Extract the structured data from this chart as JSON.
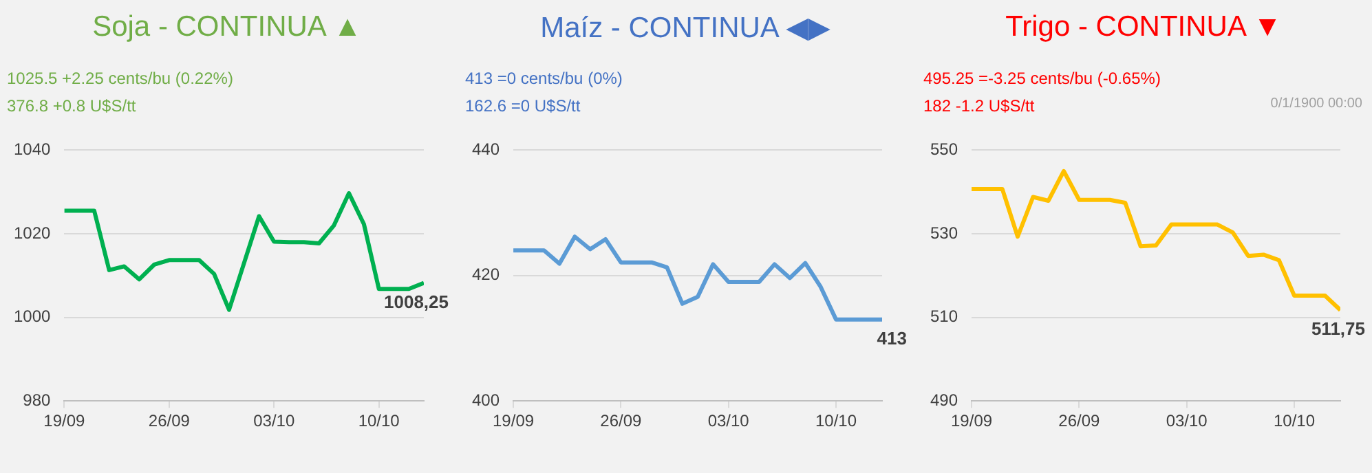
{
  "chart_data": [
    {
      "type": "line",
      "title": "Soja - CONTINUA ▲",
      "subtitle": "1025.5 +2.25 cents/bu (0.22%)",
      "annotations": [
        "376.8 +0.8 U$S/tt"
      ],
      "x": [
        "--09-19",
        "--09-20",
        "--09-21",
        "--09-22",
        "--09-23",
        "--09-24",
        "--09-25",
        "--09-26",
        "--09-27",
        "--09-28",
        "--09-29",
        "--09-30",
        "--10-01",
        "--10-02",
        "--10-03",
        "--10-04",
        "--10-05",
        "--10-06",
        "--10-07",
        "--10-08",
        "--10-09",
        "--10-10",
        "--10-11",
        "--10-12",
        "--10-13"
      ],
      "series": [
        {
          "color": "#00b050",
          "values": [
            1025.5,
            1025.5,
            1025.5,
            1011.3,
            1012.2,
            1009.1,
            1012.6,
            1013.7,
            1013.7,
            1013.7,
            1010.4,
            1001.8,
            1013,
            1024.2,
            1018.1,
            1018,
            1018,
            1017.7,
            1022,
            1029.7,
            1022.3,
            1006.8,
            1006.8,
            1006.8,
            1008.25
          ],
          "value_labels": [
            null,
            null,
            null,
            null,
            null,
            null,
            null,
            null,
            null,
            null,
            null,
            null,
            null,
            null,
            null,
            null,
            null,
            null,
            null,
            null,
            null,
            null,
            null,
            null,
            "1008,25"
          ]
        }
      ],
      "xlim": [
        "--09-19",
        "--10-13"
      ],
      "xticks": [
        {
          "value": "--09-19",
          "label": "19/09"
        },
        {
          "value": "--09-26",
          "label": "26/09"
        },
        {
          "value": "--10-03",
          "label": "03/10"
        },
        {
          "value": "--10-10",
          "label": "10/10"
        }
      ],
      "ylim": [
        980,
        1040
      ],
      "yticks": [
        980,
        1000,
        1020,
        1040
      ],
      "grid": "y",
      "marker": "none"
    },
    {
      "type": "line",
      "title": "Maíz - CONTINUA ◀▶",
      "subtitle": "413 =0 cents/bu (0%)",
      "annotations": [
        "162.6 =0 U$S/tt"
      ],
      "x": [
        "--09-19",
        "--09-20",
        "--09-21",
        "--09-22",
        "--09-23",
        "--09-24",
        "--09-25",
        "--09-26",
        "--09-27",
        "--09-28",
        "--09-29",
        "--09-30",
        "--10-01",
        "--10-02",
        "--10-03",
        "--10-04",
        "--10-05",
        "--10-06",
        "--10-07",
        "--10-08",
        "--10-09",
        "--10-10",
        "--10-11",
        "--10-12",
        "--10-13"
      ],
      "series": [
        {
          "color": "#5b9bd5",
          "values": [
            424,
            424,
            424,
            421.9,
            426.2,
            424.2,
            425.8,
            422.1,
            422.1,
            422.1,
            421.3,
            415.5,
            416.6,
            421.8,
            419,
            419,
            419,
            421.8,
            419.6,
            422,
            418.2,
            413,
            413,
            413,
            413
          ],
          "value_labels": [
            null,
            null,
            null,
            null,
            null,
            null,
            null,
            null,
            null,
            null,
            null,
            null,
            null,
            null,
            null,
            null,
            null,
            null,
            null,
            null,
            null,
            null,
            null,
            null,
            "413"
          ]
        }
      ],
      "xlim": [
        "--09-19",
        "--10-13"
      ],
      "xticks": [
        {
          "value": "--09-19",
          "label": "19/09"
        },
        {
          "value": "--09-26",
          "label": "26/09"
        },
        {
          "value": "--10-03",
          "label": "03/10"
        },
        {
          "value": "--10-10",
          "label": "10/10"
        }
      ],
      "ylim": [
        400,
        440
      ],
      "yticks": [
        400,
        420,
        440
      ],
      "grid": "y",
      "marker": "none"
    },
    {
      "type": "line",
      "title": "Trigo - CONTINUA ▼",
      "subtitle": "495.25 =-3.25 cents/bu (-0.65%)",
      "annotations": [
        "182 -1.2 U$S/tt",
        "0/1/1900 00:00"
      ],
      "x": [
        "--09-19",
        "--09-20",
        "--09-21",
        "--09-22",
        "--09-23",
        "--09-24",
        "--09-25",
        "--09-26",
        "--09-27",
        "--09-28",
        "--09-29",
        "--09-30",
        "--10-01",
        "--10-02",
        "--10-03",
        "--10-04",
        "--10-05",
        "--10-06",
        "--10-07",
        "--10-08",
        "--10-09",
        "--10-10",
        "--10-11",
        "--10-12",
        "--10-13"
      ],
      "series": [
        {
          "color": "#ffc000",
          "values": [
            540.7,
            540.7,
            540.7,
            529.3,
            538.8,
            537.9,
            545,
            538.1,
            538.1,
            538.1,
            537.4,
            527,
            527.2,
            532.2,
            532.2,
            532.2,
            532.2,
            530.3,
            524.7,
            525,
            523.7,
            515.2,
            515.2,
            515.2,
            511.75
          ],
          "value_labels": [
            null,
            null,
            null,
            null,
            null,
            null,
            null,
            null,
            null,
            null,
            null,
            null,
            null,
            null,
            null,
            null,
            null,
            null,
            null,
            null,
            null,
            null,
            null,
            null,
            "511,75"
          ]
        }
      ],
      "xlim": [
        "--09-19",
        "--10-13"
      ],
      "xticks": [
        {
          "value": "--09-19",
          "label": "19/09"
        },
        {
          "value": "--09-26",
          "label": "26/09"
        },
        {
          "value": "--10-03",
          "label": "03/10"
        },
        {
          "value": "--10-10",
          "label": "10/10"
        }
      ],
      "ylim": [
        490,
        550
      ],
      "yticks": [
        490,
        510,
        530,
        550
      ],
      "grid": "y",
      "marker": "none"
    }
  ]
}
